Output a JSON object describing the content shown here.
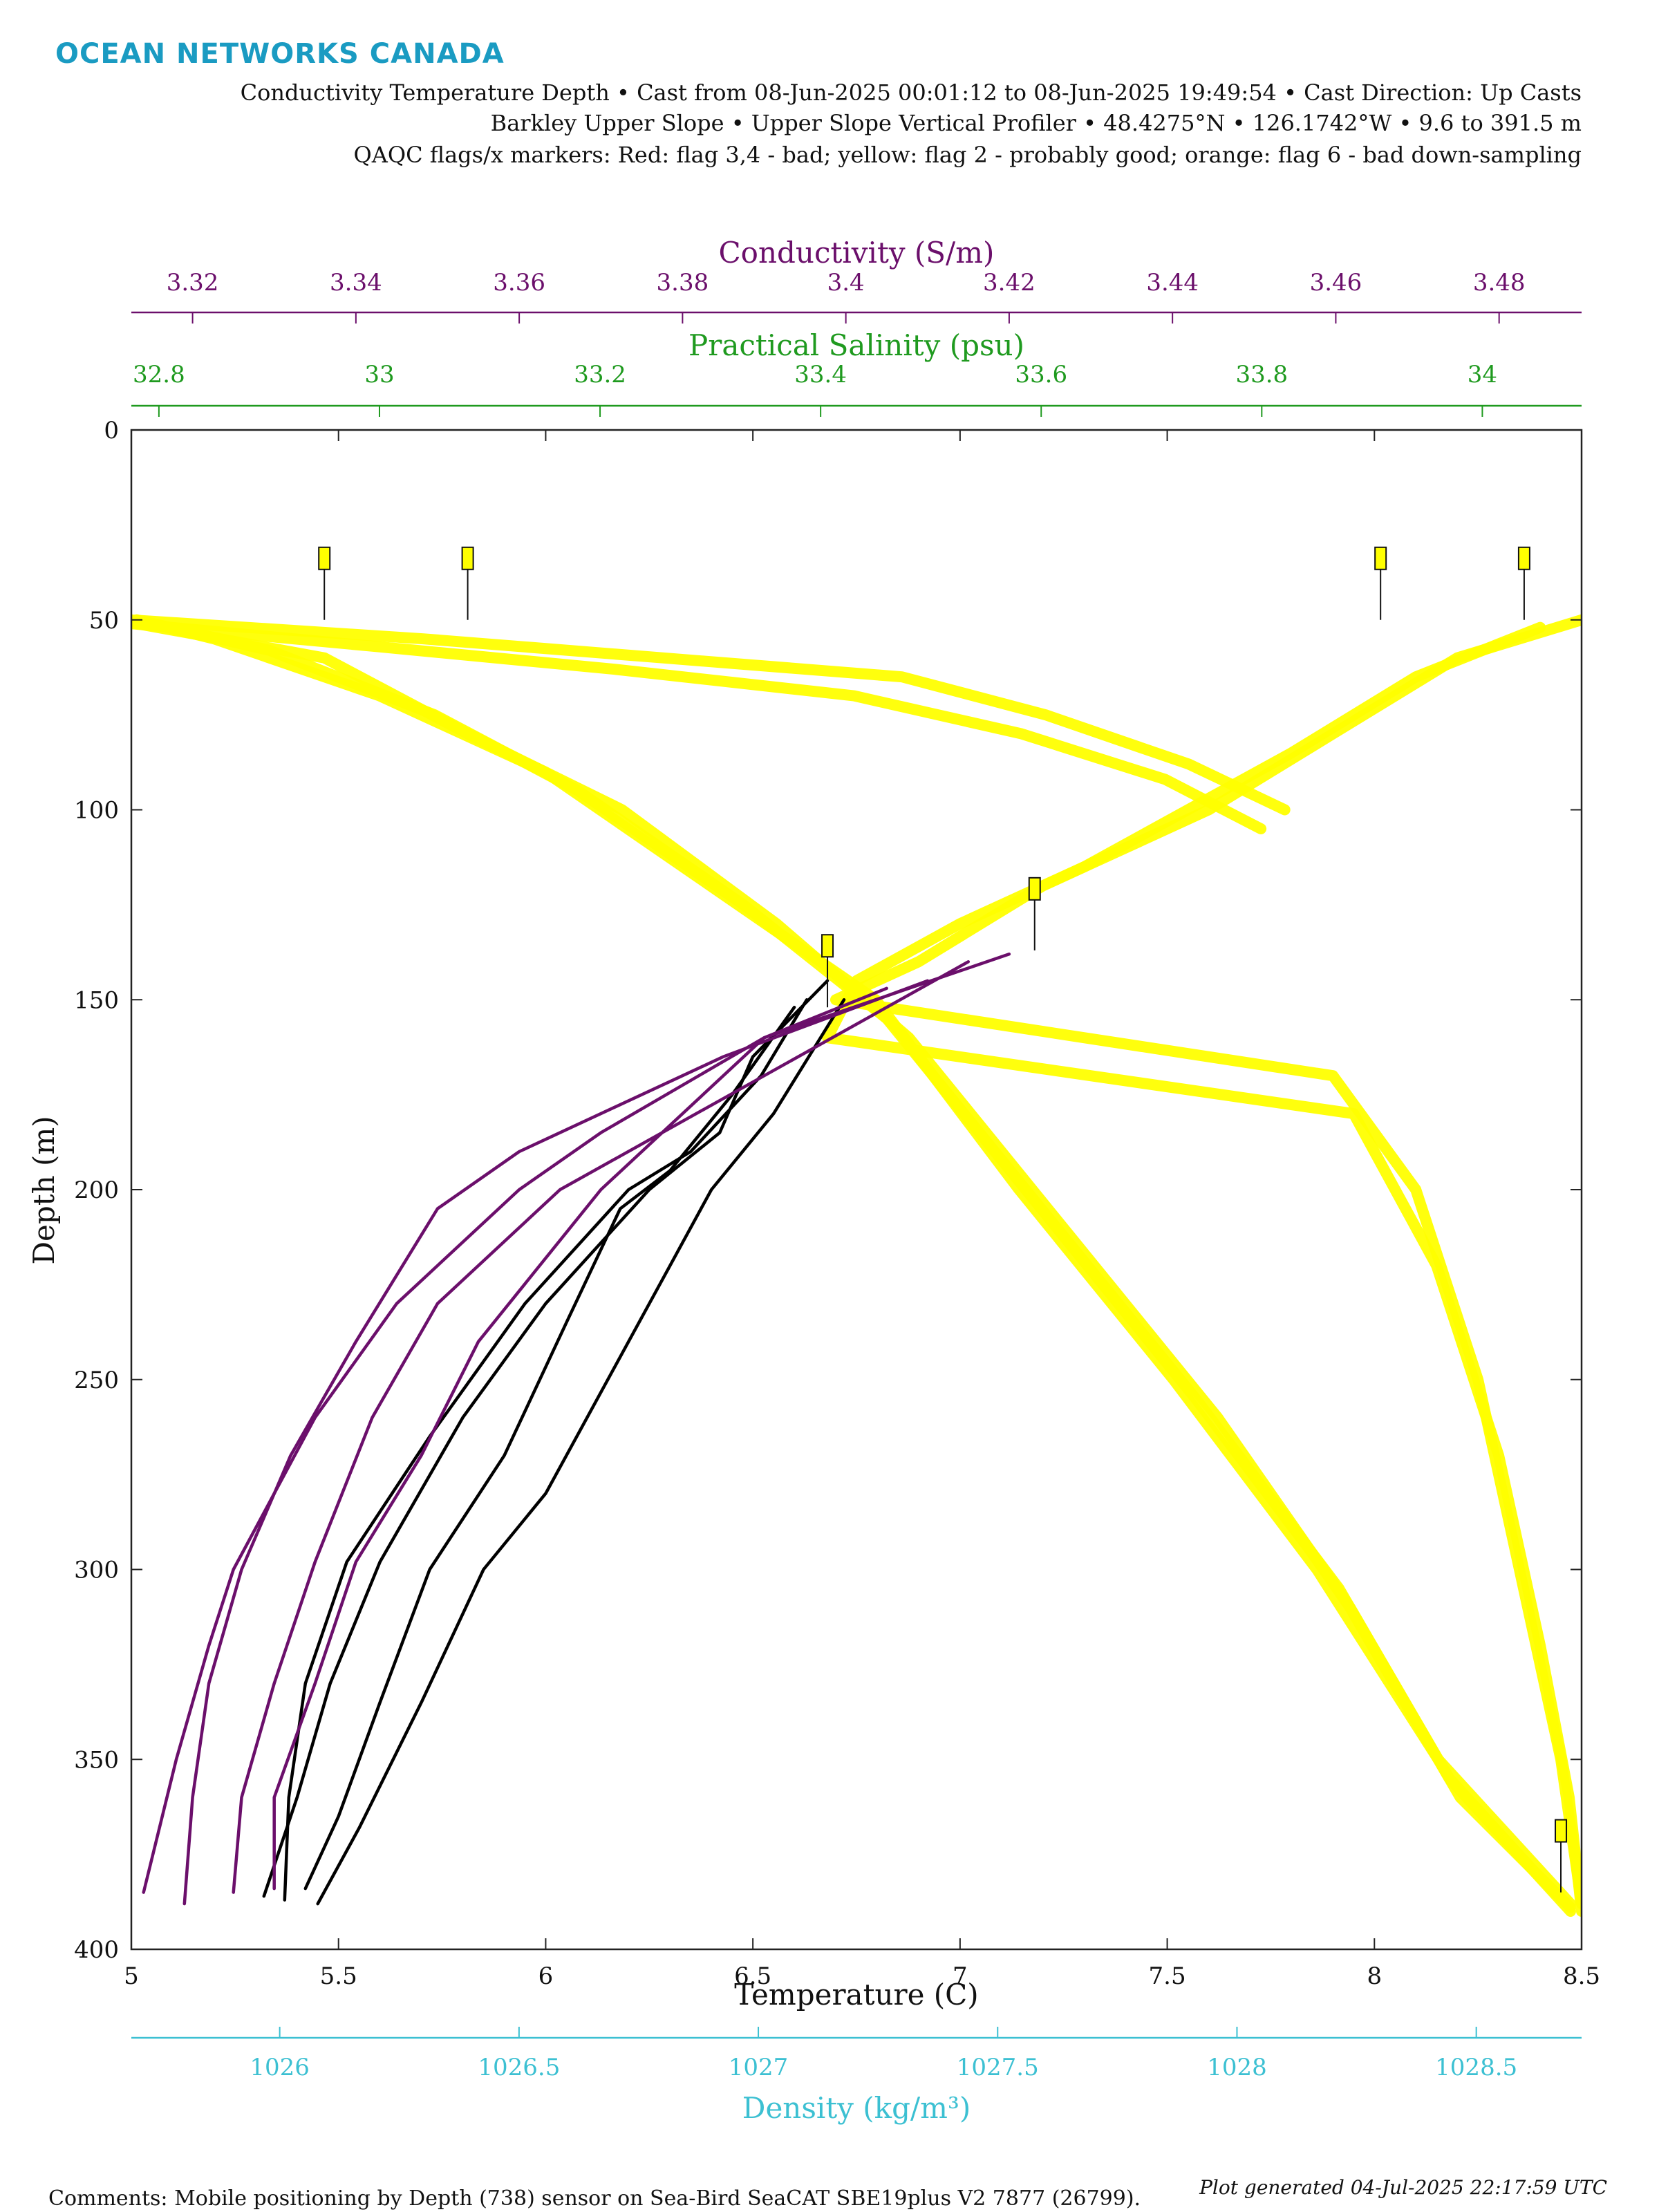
{
  "header": {
    "brand": "OCEAN NETWORKS CANADA",
    "line1": "Conductivity Temperature Depth • Cast from 08-Jun-2025 00:01:12 to 08-Jun-2025 19:49:54 • Cast Direction: Up Casts",
    "line2": "Barkley Upper Slope • Upper Slope Vertical Profiler • 48.4275°N • 126.1742°W • 9.6 to 391.5 m",
    "line3": "QAQC flags/x markers: Red: flag 3,4 - bad; yellow: flag 2 - probably good; orange: flag 6 - bad down-sampling"
  },
  "footer": {
    "comments": "Comments: Mobile positioning by Depth (738) sensor on Sea-Bird SeaCAT SBE19plus V2 7877 (26799).",
    "generated": "Plot generated 04-Jul-2025 22:17:59 UTC"
  },
  "colors": {
    "brand": "#1a9bc2",
    "conductivity": "#6b0f6b",
    "salinity": "#1f9a1f",
    "temperature": "#000000",
    "density": "#3cc0d2",
    "qaqc_flag2": "#ffff00"
  },
  "chart_data": {
    "type": "line",
    "y_axis": {
      "label": "Depth (m)",
      "range": [
        0,
        400
      ],
      "reversed": true,
      "ticks": [
        0,
        50,
        100,
        150,
        200,
        250,
        300,
        350,
        400
      ]
    },
    "axes": {
      "temperature": {
        "label": "Temperature (C)",
        "range": [
          5,
          8.5
        ],
        "ticks": [
          5,
          5.5,
          6,
          6.5,
          7,
          7.5,
          8,
          8.5
        ],
        "tick_labels": [
          "5",
          "5.5",
          "6",
          "6.5",
          "7",
          "7.5",
          "8",
          "8.5"
        ],
        "position": "bottom"
      },
      "density": {
        "label": "Density (kg/m³)",
        "range": [
          1025.69,
          1028.72
        ],
        "ticks": [
          1026,
          1026.5,
          1027,
          1027.5,
          1028,
          1028.5
        ],
        "tick_labels": [
          "1026",
          "1026.5",
          "1027",
          "1027.5",
          "1028",
          "1028.5"
        ],
        "position": "bottom"
      },
      "conductivity": {
        "label": "Conductivity (S/m)",
        "range": [
          3.3125,
          3.4901
        ],
        "ticks": [
          3.32,
          3.34,
          3.36,
          3.38,
          3.4,
          3.42,
          3.44,
          3.46,
          3.48
        ],
        "tick_labels": [
          "3.32",
          "3.34",
          "3.36",
          "3.38",
          "3.4",
          "3.42",
          "3.44",
          "3.46",
          "3.48"
        ],
        "position": "top"
      },
      "salinity": {
        "label": "Practical Salinity (psu)",
        "range": [
          32.775,
          34.09
        ],
        "ticks": [
          32.8,
          33,
          33.2,
          33.4,
          33.6,
          33.8,
          34
        ],
        "tick_labels": [
          "32.8",
          "33",
          "33.2",
          "33.4",
          "33.6",
          "33.8",
          "34"
        ],
        "position": "top"
      }
    },
    "series": [
      {
        "variable": "temperature",
        "color": "#000000",
        "qaqc": "flag 2 where depth < 150",
        "casts": [
          {
            "depth": [
              145,
              165,
              185,
              200,
              230,
              260,
              298,
              330,
              360,
              386
            ],
            "values": [
              6.68,
              6.5,
              6.42,
              6.25,
              6.0,
              5.8,
              5.6,
              5.48,
              5.4,
              5.32
            ]
          },
          {
            "depth": [
              150,
              170,
              190,
              200,
              230,
              265,
              298,
              330,
              360,
              387
            ],
            "values": [
              6.63,
              6.52,
              6.35,
              6.2,
              5.95,
              5.72,
              5.52,
              5.42,
              5.38,
              5.37
            ]
          },
          {
            "depth": [
              152,
              175,
              195,
              205,
              235,
              270,
              300,
              335,
              365,
              384
            ],
            "values": [
              6.6,
              6.45,
              6.3,
              6.18,
              6.05,
              5.9,
              5.72,
              5.6,
              5.5,
              5.42
            ]
          },
          {
            "depth": [
              150,
              180,
              200,
              220,
              250,
              280,
              300,
              335,
              368,
              388
            ],
            "values": [
              6.72,
              6.55,
              6.4,
              6.3,
              6.15,
              6.0,
              5.85,
              5.7,
              5.55,
              5.45
            ]
          }
        ]
      },
      {
        "variable": "conductivity",
        "color": "#6b0f6b",
        "qaqc": "flag 2 where depth < 150",
        "casts": [
          {
            "depth": [
              147,
              160,
              185,
              200,
              230,
              260,
              280,
              300,
              320,
              350,
              385
            ],
            "values": [
              3.405,
              3.39,
              3.37,
              3.36,
              3.345,
              3.335,
              3.33,
              3.325,
              3.322,
              3.318,
              3.314
            ]
          },
          {
            "depth": [
              145,
              165,
              190,
              205,
              240,
              270,
              300,
              330,
              360,
              388
            ],
            "values": [
              3.41,
              3.385,
              3.36,
              3.35,
              3.34,
              3.332,
              3.326,
              3.322,
              3.32,
              3.319
            ]
          },
          {
            "depth": [
              140,
              170,
              200,
              230,
              260,
              298,
              330,
              360,
              385
            ],
            "values": [
              3.415,
              3.39,
              3.365,
              3.35,
              3.342,
              3.335,
              3.33,
              3.326,
              3.325
            ]
          },
          {
            "depth": [
              138,
              160,
              200,
              240,
              270,
              298,
              330,
              360,
              384
            ],
            "values": [
              3.42,
              3.39,
              3.37,
              3.355,
              3.348,
              3.34,
              3.335,
              3.33,
              3.33
            ]
          }
        ]
      },
      {
        "variable": "salinity",
        "color": "#ffff00",
        "qaqc": "flag 2 - probably good",
        "casts": [
          {
            "depth": [
              50,
              55,
              70,
              90,
              120,
              150,
              200,
              250,
              300,
              350,
              388
            ],
            "values": [
              32.78,
              32.85,
              33.0,
              33.15,
              33.3,
              33.45,
              33.58,
              33.72,
              33.85,
              33.96,
              34.08
            ]
          },
          {
            "depth": [
              50,
              58,
              75,
              95,
              125,
              155,
              205,
              255,
              305,
              355,
              390
            ],
            "values": [
              32.78,
              32.9,
              33.05,
              33.18,
              33.33,
              33.46,
              33.6,
              33.74,
              33.87,
              33.97,
              34.08
            ]
          },
          {
            "depth": [
              51,
              60,
              80,
              100,
              130,
              160,
              210,
              260,
              310,
              360,
              389
            ],
            "values": [
              32.78,
              32.95,
              33.08,
              33.22,
              33.36,
              33.48,
              33.62,
              33.76,
              33.88,
              33.98,
              34.08
            ]
          }
        ]
      },
      {
        "variable": "density",
        "color": "#ffff00",
        "qaqc": "flag 2 - probably good",
        "casts": [
          {
            "depth": [
              50,
              55,
              60,
              65,
              75,
              88,
              100
            ],
            "values": [
              1025.69,
              1026.3,
              1026.8,
              1027.3,
              1027.6,
              1027.9,
              1028.1
            ]
          },
          {
            "depth": [
              51,
              57,
              63,
              70,
              80,
              92,
              105
            ],
            "values": [
              1025.69,
              1026.2,
              1026.7,
              1027.2,
              1027.55,
              1027.85,
              1028.05
            ]
          }
        ]
      },
      {
        "variable": "temperature",
        "color": "#ffff00",
        "qaqc": "flag 2 - probably good (upper water column)",
        "casts": [
          {
            "depth": [
              50,
              60,
              80,
              100,
              110,
              120,
              140,
              150,
              170,
              200,
              250,
              300,
              350,
              388
            ],
            "values": [
              8.5,
              8.2,
              7.9,
              7.6,
              7.4,
              7.2,
              6.9,
              6.7,
              7.9,
              8.1,
              8.25,
              8.35,
              8.45,
              8.5
            ]
          },
          {
            "depth": [
              52,
              65,
              85,
              100,
              115,
              130,
              145,
              160,
              180,
              220,
              270,
              320,
              360,
              390
            ],
            "values": [
              8.4,
              8.1,
              7.8,
              7.55,
              7.3,
              7.0,
              6.75,
              6.68,
              7.95,
              8.15,
              8.3,
              8.4,
              8.47,
              8.5
            ]
          }
        ]
      }
    ],
    "qaqc_flags": [
      {
        "variable": "salinity",
        "value": 32.95,
        "depth": 50,
        "flag": 2
      },
      {
        "variable": "salinity",
        "value": 33.08,
        "depth": 50,
        "flag": 2
      },
      {
        "variable": "density",
        "value": 1028.3,
        "depth": 50,
        "flag": 2
      },
      {
        "variable": "density",
        "value": 1028.6,
        "depth": 50,
        "flag": 2
      },
      {
        "variable": "temperature",
        "value": 7.18,
        "depth": 137,
        "flag": 2
      },
      {
        "variable": "temperature",
        "value": 6.68,
        "depth": 152,
        "flag": 2
      },
      {
        "variable": "temperature",
        "value": 8.45,
        "depth": 385,
        "flag": 2
      }
    ]
  }
}
